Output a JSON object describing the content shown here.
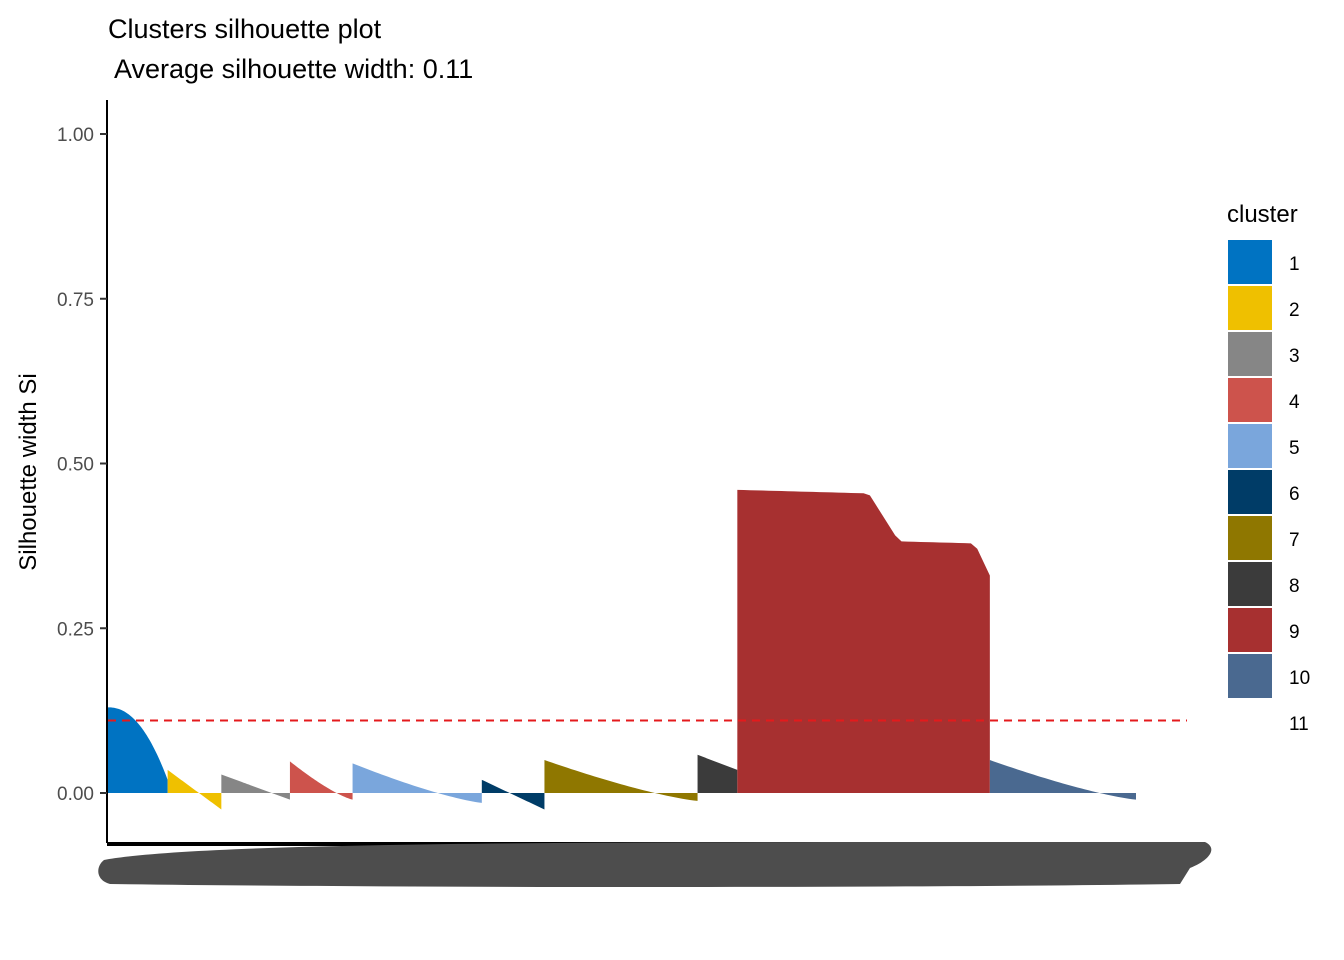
{
  "chart_data": {
    "type": "bar",
    "title": "Clusters silhouette plot",
    "subtitle": " Average silhouette width: 0.11",
    "ylabel": "Silhouette width Si",
    "xlabel": "",
    "ylim": [
      -0.07,
      1.05
    ],
    "yticks": [
      0.0,
      0.25,
      0.5,
      0.75,
      1.0
    ],
    "ytick_labels": [
      "0.00",
      "0.25",
      "0.50",
      "0.75",
      "1.00"
    ],
    "average_line": 0.11,
    "average_line_color": "#e41a1c",
    "legend_title": "cluster",
    "legend_position": "right",
    "grid": false,
    "series": [
      {
        "name": "1",
        "color": "#0073C2",
        "count": 60,
        "start": 0.13,
        "end": 0.02,
        "profile": "convex"
      },
      {
        "name": "2",
        "color": "#EFC000",
        "count": 54,
        "start": 0.035,
        "end": -0.025,
        "profile": "linear"
      },
      {
        "name": "3",
        "color": "#868686",
        "count": 69,
        "start": 0.028,
        "end": -0.01,
        "profile": "linear"
      },
      {
        "name": "4",
        "color": "#CD534C",
        "count": 63,
        "start": 0.048,
        "end": -0.01,
        "profile": "concave"
      },
      {
        "name": "5",
        "color": "#7AA6DC",
        "count": 130,
        "start": 0.045,
        "end": -0.015,
        "profile": "concave"
      },
      {
        "name": "6",
        "color": "#003C67",
        "count": 63,
        "start": 0.02,
        "end": -0.025,
        "profile": "linear"
      },
      {
        "name": "7",
        "color": "#8F7700",
        "count": 154,
        "start": 0.05,
        "end": -0.012,
        "profile": "concave"
      },
      {
        "name": "8",
        "color": "#3B3B3B",
        "count": 40,
        "start": 0.058,
        "end": 0.035,
        "profile": "linear"
      },
      {
        "name": "9",
        "color": "#A73030",
        "count": 254,
        "start": 0.46,
        "end": 0.33,
        "profile": "step"
      },
      {
        "name": "10",
        "color": "#4A6990",
        "count": 147,
        "start": 0.05,
        "end": -0.01,
        "profile": "concave"
      },
      {
        "name": "11",
        "color": "#ffffff",
        "count": 0,
        "start": 0,
        "end": 0,
        "profile": "linear"
      }
    ]
  }
}
